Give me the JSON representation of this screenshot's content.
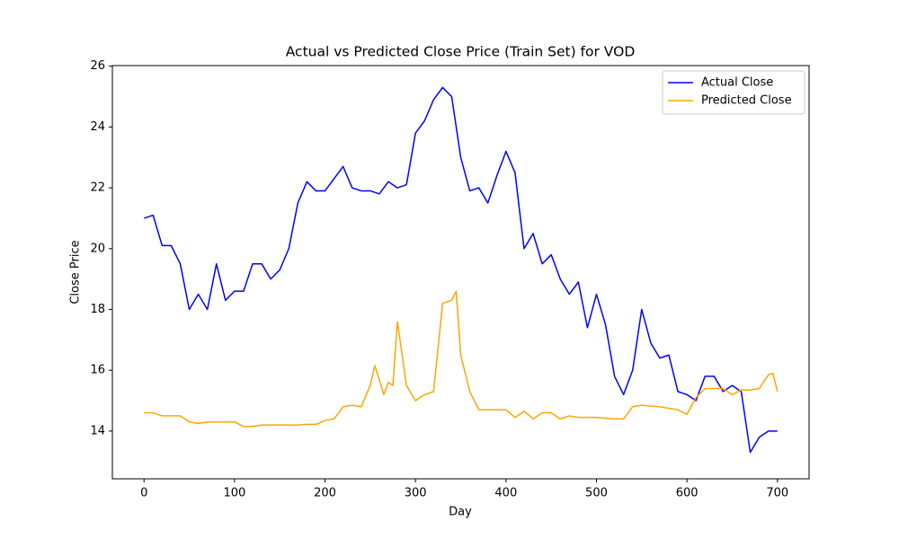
{
  "chart_data": {
    "type": "line",
    "title": "Actual vs Predicted Close Price (Train Set) for VOD",
    "x_label": "Day",
    "y_label": "Close Price",
    "xlim": [
      -35,
      735
    ],
    "ylim": [
      12.43,
      26.02
    ],
    "xticks": [
      0,
      100,
      200,
      300,
      400,
      500,
      600,
      700
    ],
    "yticks": [
      14,
      16,
      18,
      20,
      22,
      24,
      26
    ],
    "legend": "upper right",
    "series": [
      {
        "name": "Actual Close",
        "color": "#0000ff",
        "x": [
          0,
          10,
          20,
          30,
          40,
          50,
          60,
          70,
          80,
          90,
          100,
          110,
          120,
          130,
          140,
          150,
          160,
          170,
          180,
          190,
          200,
          210,
          220,
          230,
          240,
          250,
          260,
          270,
          280,
          290,
          300,
          310,
          320,
          330,
          340,
          350,
          360,
          370,
          380,
          390,
          400,
          410,
          420,
          430,
          440,
          450,
          460,
          470,
          480,
          490,
          500,
          510,
          520,
          530,
          540,
          550,
          560,
          570,
          580,
          590,
          600,
          610,
          620,
          630,
          640,
          650,
          660,
          670,
          680,
          690,
          700
        ],
        "values": [
          21.0,
          21.1,
          20.1,
          20.1,
          19.5,
          18.0,
          18.5,
          18.0,
          19.5,
          18.3,
          18.6,
          18.6,
          19.5,
          19.5,
          19.0,
          19.3,
          20.0,
          21.5,
          22.2,
          21.9,
          21.9,
          22.3,
          22.7,
          22.0,
          21.9,
          21.9,
          21.8,
          22.2,
          22.0,
          22.1,
          23.8,
          24.2,
          24.9,
          25.3,
          25.0,
          23.0,
          21.9,
          22.0,
          21.5,
          22.4,
          23.2,
          22.5,
          20.0,
          20.5,
          19.5,
          19.8,
          19.0,
          18.5,
          18.9,
          17.4,
          18.5,
          17.5,
          15.8,
          15.2,
          16.0,
          18.0,
          16.9,
          16.4,
          16.5,
          15.3,
          15.2,
          15.0,
          15.8,
          15.8,
          15.3,
          15.5,
          15.3,
          13.3,
          13.8,
          14.0,
          14.0
        ]
      },
      {
        "name": "Predicted Close",
        "color": "#ffa500",
        "x": [
          0,
          10,
          20,
          30,
          40,
          50,
          60,
          70,
          80,
          90,
          100,
          110,
          120,
          130,
          140,
          150,
          160,
          170,
          180,
          190,
          200,
          210,
          220,
          230,
          240,
          250,
          255,
          260,
          265,
          270,
          275,
          280,
          290,
          300,
          310,
          320,
          330,
          340,
          345,
          350,
          360,
          370,
          380,
          390,
          400,
          410,
          420,
          430,
          440,
          450,
          460,
          470,
          480,
          490,
          500,
          510,
          520,
          530,
          540,
          550,
          560,
          570,
          580,
          590,
          600,
          610,
          620,
          630,
          640,
          650,
          660,
          670,
          680,
          690,
          695,
          700
        ],
        "values": [
          14.6,
          14.6,
          14.5,
          14.5,
          14.5,
          14.3,
          14.25,
          14.3,
          14.3,
          14.3,
          14.3,
          14.15,
          14.15,
          14.2,
          14.2,
          14.2,
          14.2,
          14.2,
          14.22,
          14.22,
          14.35,
          14.4,
          14.8,
          14.85,
          14.8,
          15.5,
          16.15,
          15.7,
          15.2,
          15.6,
          15.5,
          17.6,
          15.5,
          15.0,
          15.2,
          15.3,
          18.2,
          18.3,
          18.6,
          16.5,
          15.3,
          14.7,
          14.7,
          14.7,
          14.7,
          14.45,
          14.65,
          14.4,
          14.6,
          14.6,
          14.4,
          14.5,
          14.45,
          14.45,
          14.45,
          14.42,
          14.4,
          14.4,
          14.8,
          14.85,
          14.82,
          14.8,
          14.75,
          14.7,
          14.55,
          15.1,
          15.4,
          15.4,
          15.4,
          15.2,
          15.35,
          15.35,
          15.4,
          15.85,
          15.9,
          15.3
        ]
      }
    ]
  }
}
